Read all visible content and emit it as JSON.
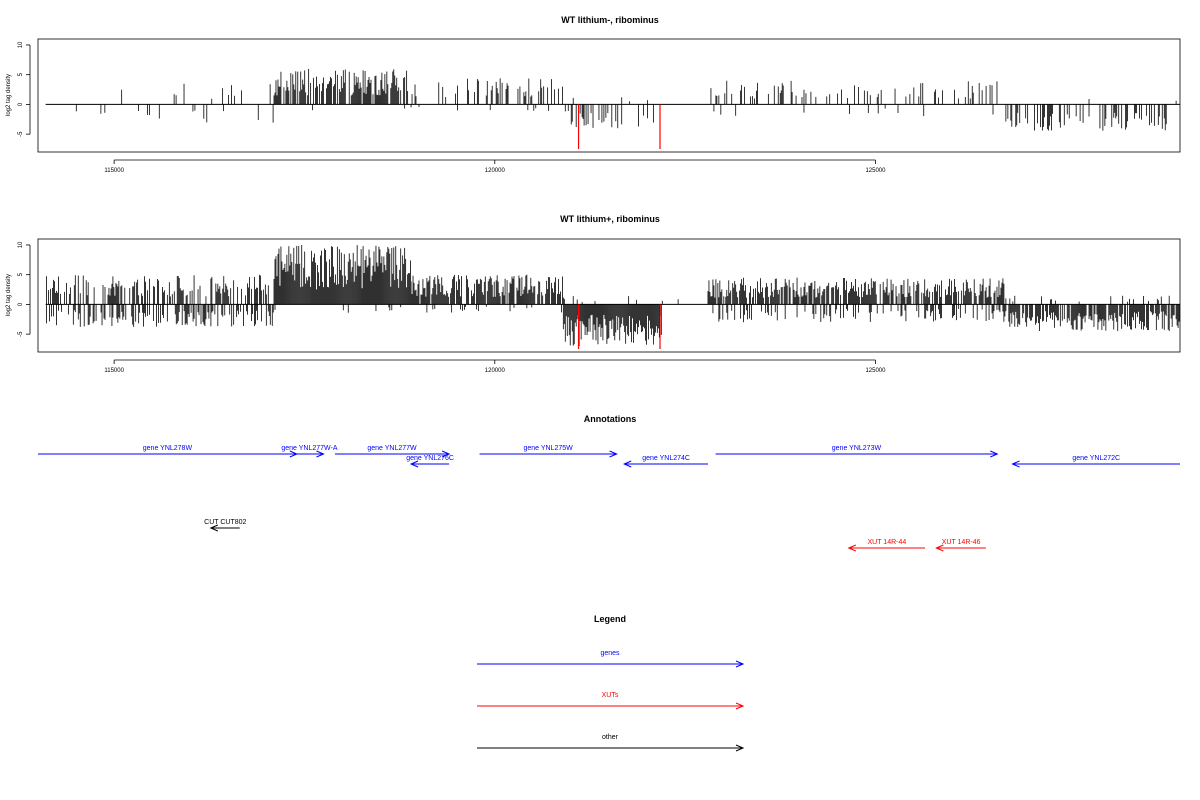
{
  "colors": {
    "gene": "#0000ff",
    "xut": "#ff0000",
    "other": "#000000",
    "highlight": "#ff0000"
  },
  "chart_data": [
    {
      "type": "bar",
      "title": "WT lithium-, ribominus",
      "ylabel": "log2 tag density",
      "xlim": [
        114000,
        129000
      ],
      "ylim": [
        -8,
        11
      ],
      "xticks": [
        115000,
        120000,
        125000
      ],
      "xtick_labels": [
        "115000",
        "120000",
        "125000"
      ],
      "yticks": [
        -5,
        0,
        5,
        10
      ],
      "ytick_labels": [
        "-5",
        "0",
        "5",
        "10"
      ],
      "grid": false,
      "x_start": 114100,
      "x_end": 129000,
      "segments": [
        {
          "x0": 114100,
          "x1": 114800,
          "pos_density": 0.08,
          "pos_max": 3.8,
          "neg_density": 0.01,
          "neg_max": 2.5
        },
        {
          "x0": 114800,
          "x1": 117100,
          "pos_density": 0.07,
          "pos_max": 3.5,
          "neg_density": 0.06,
          "neg_max": 3.2
        },
        {
          "x0": 117100,
          "x1": 118900,
          "pos_density": 0.75,
          "pos_max": 6.0,
          "neg_density": 0.02,
          "neg_max": 1.0
        },
        {
          "x0": 118900,
          "x1": 120900,
          "pos_density": 0.3,
          "pos_max": 4.5,
          "neg_density": 0.03,
          "neg_max": 1.5
        },
        {
          "x0": 120900,
          "x1": 122200,
          "pos_density": 0.02,
          "pos_max": 1.5,
          "neg_density": 0.25,
          "neg_max": 4.0
        },
        {
          "x0": 122200,
          "x1": 122800,
          "pos_density": 0.0,
          "pos_max": 0,
          "neg_density": 0.0,
          "neg_max": 0
        },
        {
          "x0": 122800,
          "x1": 126700,
          "pos_density": 0.22,
          "pos_max": 4.0,
          "neg_density": 0.03,
          "neg_max": 2.0
        },
        {
          "x0": 126700,
          "x1": 129000,
          "pos_density": 0.02,
          "pos_max": 1.0,
          "neg_density": 0.4,
          "neg_max": 4.5
        }
      ],
      "highlights": [
        {
          "x": 121100,
          "value": -7.5
        },
        {
          "x": 122170,
          "value": -7.5
        }
      ]
    },
    {
      "type": "bar",
      "title": "WT lithium+, ribominus",
      "ylabel": "log2 tag density",
      "xlim": [
        114000,
        129000
      ],
      "ylim": [
        -8,
        11
      ],
      "xticks": [
        115000,
        120000,
        125000
      ],
      "xtick_labels": [
        "115000",
        "120000",
        "125000"
      ],
      "yticks": [
        -5,
        0,
        5,
        10
      ],
      "ytick_labels": [
        "-5",
        "0",
        "5",
        "10"
      ],
      "grid": false,
      "x_start": 114100,
      "x_end": 129000,
      "segments": [
        {
          "x0": 114100,
          "x1": 117100,
          "pos_density": 0.55,
          "pos_max": 5.0,
          "neg_density": 0.45,
          "neg_max": 3.8
        },
        {
          "x0": 117100,
          "x1": 118900,
          "pos_density": 1.0,
          "pos_max": 10.0,
          "neg_density": 0.05,
          "neg_max": 1.5
        },
        {
          "x0": 118900,
          "x1": 120900,
          "pos_density": 0.8,
          "pos_max": 5.0,
          "neg_density": 0.1,
          "neg_max": 1.5
        },
        {
          "x0": 120900,
          "x1": 122200,
          "pos_density": 0.05,
          "pos_max": 1.5,
          "neg_density": 1.0,
          "neg_max": 7.0
        },
        {
          "x0": 122200,
          "x1": 122800,
          "pos_density": 0.02,
          "pos_max": 1.0,
          "neg_density": 0.0,
          "neg_max": 0
        },
        {
          "x0": 122800,
          "x1": 126700,
          "pos_density": 0.8,
          "pos_max": 4.5,
          "neg_density": 0.3,
          "neg_max": 3.0
        },
        {
          "x0": 126700,
          "x1": 129000,
          "pos_density": 0.1,
          "pos_max": 1.5,
          "neg_density": 0.85,
          "neg_max": 4.5
        }
      ],
      "highlights": [
        {
          "x": 121100,
          "value": -7.5
        },
        {
          "x": 122170,
          "value": -7.5
        }
      ]
    }
  ],
  "annotations": {
    "title": "Annotations",
    "xlim": [
      114000,
      129000
    ],
    "features": [
      {
        "label": "gene YNL278W",
        "type": "gene",
        "strand": "+",
        "start": 114000,
        "end": 117400,
        "row": 0
      },
      {
        "label": "gene YNL277W-A",
        "type": "gene",
        "strand": "+",
        "start": 117380,
        "end": 117750,
        "row": 0
      },
      {
        "label": "gene YNL277W",
        "type": "gene",
        "strand": "+",
        "start": 117900,
        "end": 119400,
        "row": 0
      },
      {
        "label": "gene YNL276C",
        "type": "gene",
        "strand": "-",
        "start": 118900,
        "end": 119400,
        "row": 1
      },
      {
        "label": "gene YNL275W",
        "type": "gene",
        "strand": "+",
        "start": 119800,
        "end": 121600,
        "row": 0
      },
      {
        "label": "gene YNL274C",
        "type": "gene",
        "strand": "-",
        "start": 121700,
        "end": 122800,
        "row": 1
      },
      {
        "label": "gene YNL273W",
        "type": "gene",
        "strand": "+",
        "start": 122900,
        "end": 126600,
        "row": 0
      },
      {
        "label": "gene YNL272C",
        "type": "gene",
        "strand": "-",
        "start": 126800,
        "end": 129000,
        "row": 1
      },
      {
        "label": "CUT CUT802",
        "type": "other",
        "strand": "-",
        "start": 116270,
        "end": 116650,
        "row": 2
      },
      {
        "label": "XUT 14R-44",
        "type": "xut",
        "strand": "-",
        "start": 124650,
        "end": 125650,
        "row": 3
      },
      {
        "label": "XUT 14R-46",
        "type": "xut",
        "strand": "-",
        "start": 125800,
        "end": 126450,
        "row": 3
      }
    ]
  },
  "legend": {
    "title": "Legend",
    "items": [
      {
        "label": "genes",
        "type": "gene"
      },
      {
        "label": "XUTs",
        "type": "xut"
      },
      {
        "label": "other",
        "type": "other"
      }
    ]
  }
}
